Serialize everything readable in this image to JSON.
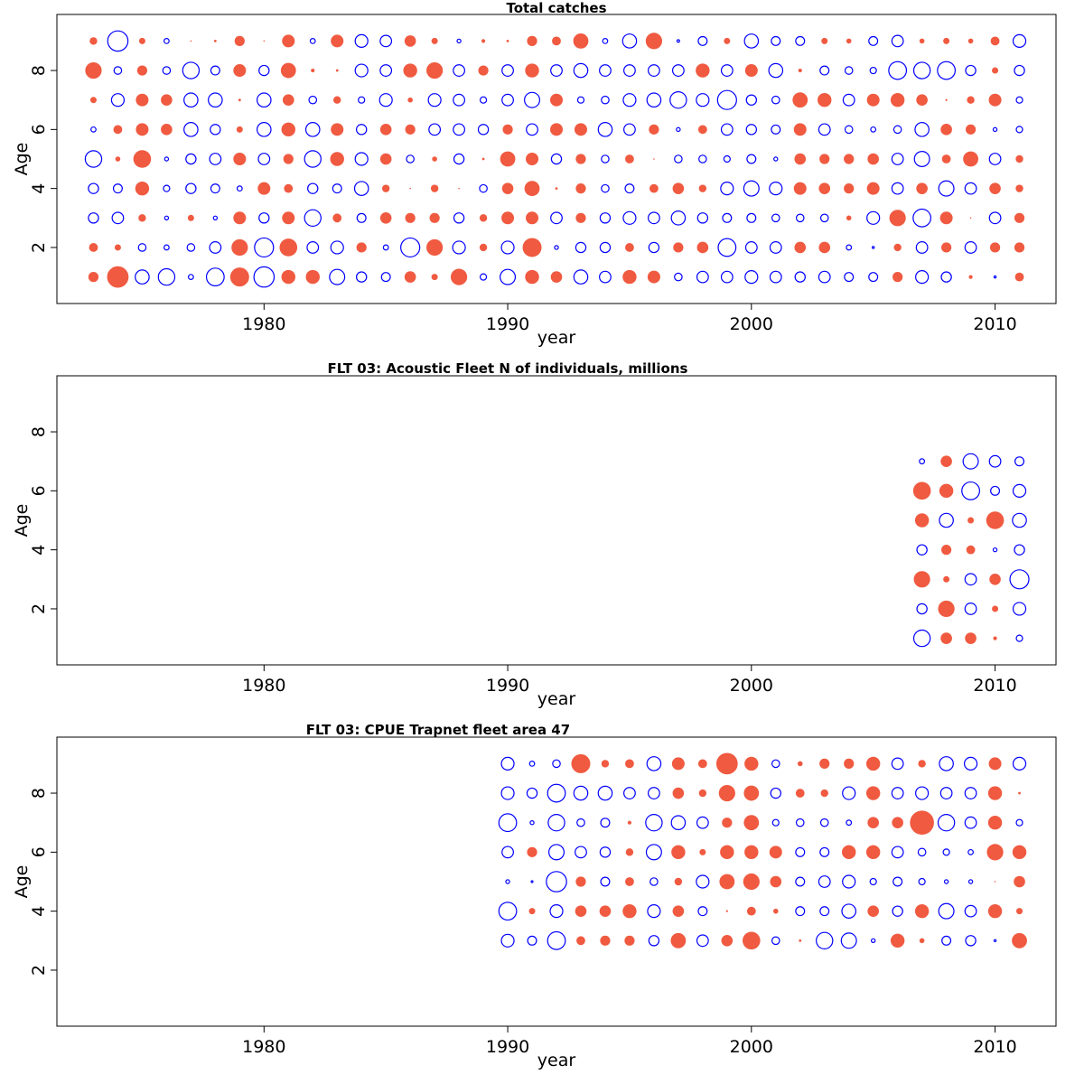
{
  "chart_data": [
    {
      "type": "scatter",
      "subtype": "bubble-residual",
      "title": "Total catches",
      "xlabel": "year",
      "ylabel": "Age",
      "xlim": [
        1971.5,
        2012.5
      ],
      "ylim": [
        0.1,
        9.9
      ],
      "xticks": [
        1980,
        1990,
        2000,
        2010
      ],
      "yticks": [
        2,
        4,
        6,
        8
      ],
      "colors": {
        "positive": "#f05a40",
        "negative": "#0000ff"
      },
      "ages": [
        1,
        2,
        3,
        4,
        5,
        6,
        7,
        8,
        9
      ],
      "years": [
        1973,
        1974,
        1975,
        1976,
        1977,
        1978,
        1979,
        1980,
        1981,
        1982,
        1983,
        1984,
        1985,
        1986,
        1987,
        1988,
        1989,
        1990,
        1991,
        1992,
        1993,
        1994,
        1995,
        1996,
        1997,
        1998,
        1999,
        2000,
        2001,
        2002,
        2003,
        2004,
        2005,
        2006,
        2007,
        2008,
        2009,
        2010,
        2011
      ],
      "residuals": {
        "9": [
          0.3,
          -0.8,
          0.25,
          -0.2,
          0.05,
          0.1,
          0.4,
          0.05,
          0.5,
          -0.2,
          0.5,
          -0.5,
          -0.45,
          0.45,
          0.25,
          -0.15,
          0.15,
          0.1,
          0.4,
          0.35,
          0.6,
          -0.2,
          -0.55,
          0.65,
          -0.1,
          -0.35,
          0.25,
          -0.55,
          -0.35,
          -0.35,
          0.25,
          0.2,
          -0.35,
          -0.45,
          0.2,
          0.25,
          0.2,
          0.35,
          -0.5
        ],
        "8": [
          0.65,
          -0.3,
          0.4,
          -0.3,
          -0.65,
          -0.35,
          0.5,
          -0.4,
          0.6,
          0.15,
          0.1,
          -0.5,
          -0.45,
          0.55,
          0.65,
          -0.45,
          0.4,
          -0.45,
          0.55,
          -0.45,
          -0.55,
          -0.45,
          -0.45,
          -0.45,
          -0.45,
          0.55,
          -0.45,
          0.5,
          -0.55,
          0.15,
          -0.35,
          -0.3,
          -0.25,
          -0.7,
          -0.65,
          -0.7,
          -0.4,
          0.25,
          -0.4
        ],
        "7": [
          0.25,
          -0.5,
          0.5,
          0.45,
          -0.55,
          -0.55,
          0.1,
          -0.55,
          0.45,
          -0.3,
          0.3,
          -0.25,
          -0.5,
          0.2,
          -0.5,
          -0.45,
          -0.25,
          -0.45,
          -0.6,
          0.5,
          -0.25,
          -0.3,
          -0.5,
          -0.55,
          -0.65,
          -0.5,
          -0.75,
          -0.4,
          -0.3,
          0.6,
          0.55,
          -0.45,
          0.5,
          0.55,
          0.45,
          0.08,
          0.3,
          0.5,
          -0.25
        ],
        "6": [
          -0.2,
          0.35,
          0.5,
          0.45,
          -0.55,
          -0.4,
          0.25,
          -0.55,
          0.55,
          -0.55,
          0.5,
          -0.4,
          0.45,
          0.4,
          -0.45,
          -0.45,
          -0.4,
          0.4,
          -0.45,
          0.5,
          0.5,
          -0.55,
          -0.45,
          0.4,
          -0.15,
          0.35,
          -0.45,
          -0.4,
          -0.35,
          0.5,
          -0.45,
          -0.3,
          -0.2,
          -0.3,
          -0.55,
          0.45,
          0.4,
          -0.15,
          -0.25
        ],
        "5": [
          -0.65,
          0.2,
          0.7,
          -0.15,
          -0.4,
          -0.45,
          0.5,
          -0.45,
          0.4,
          -0.65,
          0.55,
          -0.5,
          0.45,
          -0.3,
          0.2,
          -0.4,
          0.1,
          0.6,
          0.5,
          -0.4,
          0.4,
          -0.3,
          0.35,
          0.05,
          -0.3,
          -0.3,
          -0.25,
          -0.35,
          -0.15,
          0.45,
          0.4,
          0.4,
          0.45,
          -0.45,
          -0.6,
          0.35,
          0.6,
          -0.45,
          0.3
        ],
        "4": [
          -0.4,
          -0.35,
          0.55,
          -0.25,
          -0.4,
          -0.35,
          -0.2,
          0.5,
          0.35,
          -0.4,
          -0.35,
          -0.55,
          0.3,
          0.05,
          0.3,
          0.05,
          -0.3,
          0.45,
          0.6,
          0.1,
          0.4,
          -0.3,
          -0.35,
          0.35,
          0.45,
          0.3,
          -0.5,
          -0.6,
          -0.5,
          0.5,
          0.45,
          0.4,
          0.5,
          -0.45,
          0.45,
          -0.6,
          -0.45,
          0.45,
          0.3
        ],
        "3": [
          -0.4,
          -0.45,
          0.3,
          -0.15,
          0.25,
          -0.15,
          0.5,
          -0.4,
          0.5,
          -0.65,
          0.35,
          -0.35,
          0.45,
          0.4,
          0.4,
          -0.4,
          0.3,
          0.5,
          0.5,
          -0.45,
          0.4,
          -0.4,
          -0.5,
          -0.45,
          -0.55,
          -0.4,
          -0.35,
          -0.35,
          -0.3,
          -0.3,
          -0.3,
          0.2,
          -0.5,
          0.65,
          -0.7,
          0.5,
          0.03,
          -0.45,
          0.4
        ],
        "2": [
          0.35,
          0.25,
          -0.3,
          -0.2,
          -0.3,
          -0.45,
          0.65,
          -0.75,
          0.7,
          -0.45,
          -0.5,
          0.4,
          -0.2,
          -0.75,
          0.65,
          -0.5,
          0.3,
          -0.5,
          0.75,
          -0.15,
          -0.4,
          -0.4,
          0.35,
          -0.4,
          0.4,
          0.45,
          -0.7,
          -0.45,
          -0.45,
          0.45,
          0.45,
          -0.2,
          -0.08,
          0.3,
          -0.45,
          0.4,
          -0.45,
          0.4,
          0.4
        ],
        "1": [
          0.4,
          0.85,
          -0.55,
          -0.65,
          -0.2,
          -0.7,
          0.75,
          -0.8,
          0.55,
          0.55,
          -0.6,
          -0.4,
          -0.35,
          0.45,
          0.25,
          0.65,
          -0.25,
          -0.6,
          0.55,
          0.45,
          -0.55,
          -0.45,
          0.55,
          0.5,
          -0.3,
          -0.45,
          -0.45,
          -0.5,
          -0.45,
          -0.4,
          -0.45,
          -0.35,
          -0.35,
          0.4,
          -0.5,
          -0.4,
          0.15,
          -0.08,
          0.35
        ]
      }
    },
    {
      "type": "scatter",
      "subtype": "bubble-residual",
      "title": "FLT 03: Acoustic Fleet  N of individuals, millions",
      "xlabel": "year",
      "ylabel": "Age",
      "xlim": [
        1971.5,
        2012.5
      ],
      "ylim": [
        0.1,
        9.9
      ],
      "xticks": [
        1980,
        1990,
        2000,
        2010
      ],
      "yticks": [
        2,
        4,
        6,
        8
      ],
      "colors": {
        "positive": "#f05a40",
        "negative": "#0000ff"
      },
      "ages": [
        1,
        2,
        3,
        4,
        5,
        6,
        7
      ],
      "years": [
        2007,
        2008,
        2009,
        2010,
        2011
      ],
      "residuals": {
        "7": [
          -0.2,
          0.45,
          -0.6,
          -0.45,
          -0.35
        ],
        "6": [
          0.7,
          0.55,
          -0.7,
          -0.35,
          -0.5
        ],
        "5": [
          0.55,
          -0.55,
          0.25,
          0.7,
          -0.55
        ],
        "4": [
          -0.4,
          0.4,
          0.35,
          -0.15,
          -0.4
        ],
        "3": [
          0.65,
          0.25,
          -0.45,
          0.45,
          -0.75
        ],
        "2": [
          -0.4,
          0.65,
          -0.45,
          0.25,
          -0.5
        ],
        "1": [
          -0.65,
          0.45,
          0.45,
          0.15,
          -0.25
        ]
      }
    },
    {
      "type": "scatter",
      "subtype": "bubble-residual",
      "title": "FLT 03: CPUE Trapnet fleet area 47",
      "xlabel": "year",
      "ylabel": "Age",
      "xlim": [
        1971.5,
        2012.5
      ],
      "ylim": [
        0.1,
        9.9
      ],
      "xticks": [
        1980,
        1990,
        2000,
        2010
      ],
      "yticks": [
        2,
        4,
        6,
        8
      ],
      "colors": {
        "positive": "#f05a40",
        "negative": "#0000ff"
      },
      "ages": [
        3,
        4,
        5,
        6,
        7,
        8,
        9
      ],
      "years": [
        1990,
        1991,
        1992,
        1993,
        1994,
        1995,
        1996,
        1997,
        1998,
        1999,
        2000,
        2001,
        2002,
        2003,
        2004,
        2005,
        2006,
        2007,
        2008,
        2009,
        2010,
        2011
      ],
      "residuals": {
        "9": [
          -0.5,
          -0.2,
          -0.3,
          0.75,
          0.3,
          0.35,
          -0.55,
          0.5,
          0.35,
          0.85,
          0.55,
          -0.3,
          0.2,
          0.4,
          0.4,
          0.55,
          -0.45,
          0.3,
          -0.55,
          -0.5,
          0.5,
          -0.5
        ],
        "8": [
          -0.5,
          -0.4,
          -0.7,
          -0.55,
          -0.55,
          -0.45,
          -0.45,
          0.45,
          0.3,
          0.65,
          0.6,
          -0.4,
          0.35,
          0.3,
          -0.5,
          0.55,
          -0.45,
          -0.5,
          -0.45,
          -0.45,
          0.55,
          0.1
        ],
        "7": [
          -0.7,
          -0.15,
          -0.65,
          -0.3,
          -0.35,
          0.15,
          -0.65,
          -0.55,
          -0.45,
          0.4,
          0.6,
          -0.25,
          -0.3,
          -0.3,
          -0.2,
          0.45,
          0.45,
          0.95,
          -0.65,
          -0.45,
          0.55,
          -0.25
        ],
        "6": [
          -0.45,
          0.4,
          -0.6,
          -0.45,
          -0.4,
          0.3,
          -0.6,
          0.55,
          0.25,
          0.55,
          0.55,
          0.5,
          -0.35,
          -0.35,
          0.55,
          0.55,
          -0.45,
          -0.3,
          -0.25,
          -0.2,
          0.65,
          0.55
        ],
        "5": [
          -0.15,
          -0.07,
          -0.8,
          0.4,
          -0.35,
          0.35,
          -0.3,
          0.3,
          -0.5,
          0.6,
          0.65,
          0.45,
          -0.35,
          -0.45,
          -0.5,
          -0.25,
          -0.35,
          -0.25,
          -0.15,
          -0.15,
          0.05,
          0.45
        ],
        "4": [
          -0.7,
          0.25,
          -0.5,
          0.45,
          0.45,
          0.55,
          -0.5,
          0.45,
          -0.35,
          0.08,
          0.35,
          0.2,
          -0.35,
          -0.35,
          -0.55,
          0.45,
          -0.4,
          0.55,
          -0.6,
          -0.45,
          0.55,
          0.25
        ],
        "3": [
          -0.5,
          -0.35,
          -0.7,
          0.35,
          0.4,
          0.4,
          -0.4,
          0.6,
          -0.45,
          0.45,
          0.7,
          -0.3,
          0.1,
          -0.65,
          -0.6,
          -0.15,
          0.55,
          0.2,
          -0.35,
          -0.4,
          -0.08,
          0.6
        ]
      }
    }
  ]
}
